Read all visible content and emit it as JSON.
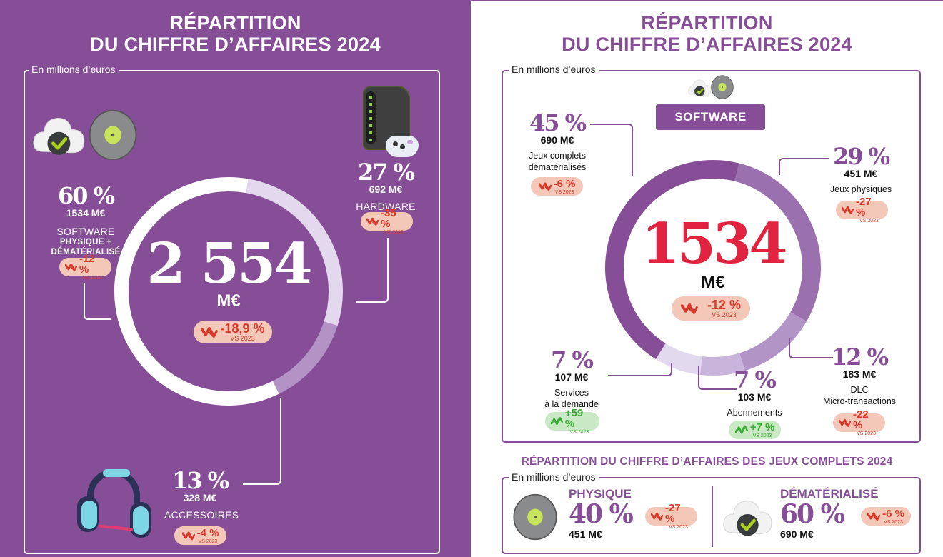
{
  "left": {
    "title_line1": "RÉPARTITION",
    "title_line2": "DU CHIFFRE D’AFFAIRES 2024",
    "unit_label": "En millions d’euros",
    "total": {
      "value": "2554",
      "value_display": "2 554",
      "unit": "M€",
      "change": "-18,9 %",
      "vs": "VS 2023",
      "trend": "down"
    },
    "segments": [
      {
        "key": "software",
        "pct": "60 %",
        "amount": "1534 M€",
        "label": "SOFTWARE",
        "sublabel1": "PHYSIQUE +",
        "sublabel2": "DÉMATÉRIALISÉ",
        "change": "-12 %",
        "vs": "VS 2023",
        "trend": "down",
        "icon": "cloud-disc-icon"
      },
      {
        "key": "hardware",
        "pct": "27 %",
        "amount": "692 M€",
        "label": "HARDWARE",
        "change": "-35 %",
        "vs": "VS 2023",
        "trend": "down",
        "icon": "console-controller-icon"
      },
      {
        "key": "accessoires",
        "pct": "13 %",
        "amount": "328 M€",
        "label": "ACCESSOIRES",
        "change": "-4 %",
        "vs": "VS 2023",
        "trend": "down",
        "icon": "headset-icon"
      }
    ]
  },
  "right": {
    "title_line1": "RÉPARTITION",
    "title_line2": "DU CHIFFRE D’AFFAIRES 2024",
    "unit_label": "En millions d’euros",
    "section_tag": "SOFTWARE",
    "total": {
      "value": "1534",
      "unit": "M€",
      "change": "-12 %",
      "vs": "VS 2023",
      "trend": "down"
    },
    "segments": [
      {
        "key": "jeux-dematerialises",
        "pct": "45 %",
        "amount": "690 M€",
        "label1": "Jeux complets",
        "label2": "dématérialisés",
        "change": "-6 %",
        "vs": "VS 2023",
        "trend": "down"
      },
      {
        "key": "jeux-physiques",
        "pct": "29 %",
        "amount": "451 M€",
        "label1": "Jeux physiques",
        "change": "-27 %",
        "vs": "VS 2023",
        "trend": "down"
      },
      {
        "key": "dlc",
        "pct": "12 %",
        "amount": "183 M€",
        "label1": "DLC",
        "label2": "Micro-transactions",
        "change": "-22 %",
        "vs": "VS 2023",
        "trend": "down"
      },
      {
        "key": "abonnements",
        "pct": "7 %",
        "amount": "103 M€",
        "label1": "Abonnements",
        "change": "+7 %",
        "vs": "VS 2023",
        "trend": "up"
      },
      {
        "key": "services",
        "pct": "7 %",
        "amount": "107 M€",
        "label1": "Services",
        "label2": "à la demande",
        "change": "+59 %",
        "vs": "VS 2023",
        "trend": "up"
      }
    ],
    "sub": {
      "title": "RÉPARTITION DU CHIFFRE D’AFFAIRES DES JEUX COMPLETS 2024",
      "unit_label": "En millions d’euros",
      "items": [
        {
          "key": "physique",
          "head": "PHYSIQUE",
          "pct": "40 %",
          "amount": "451 M€",
          "change": "-27 %",
          "vs": "VS 2023",
          "trend": "down"
        },
        {
          "key": "dematerialise",
          "head": "DÉMATÉRIALISÉ",
          "pct": "60 %",
          "amount": "690 M€",
          "change": "-6 %",
          "vs": "VS 2023",
          "trend": "down"
        }
      ]
    }
  },
  "colors": {
    "brand_purple": "#874e98",
    "down_red": "#d9392b",
    "down_bg": "#f3c8b8",
    "up_green": "#3aa935",
    "up_bg": "#c9e8c4",
    "total_red": "#e0243f"
  },
  "chart_data": [
    {
      "type": "pie",
      "title": "Répartition du chiffre d’affaires 2024 (en millions d’euros)",
      "center_label": "2554 M€",
      "categories": [
        "Hardware",
        "Accessoires",
        "Software (physique + dématérialisé)"
      ],
      "values": [
        692,
        328,
        1534
      ],
      "percentages": [
        27,
        13,
        60
      ],
      "change_vs_2023": [
        "-35 %",
        "-4 %",
        "-12 %"
      ],
      "colors": [
        "#e4d8ef",
        "#b393c6",
        "#ffffff"
      ],
      "total_change_vs_2023": "-18,9 %"
    },
    {
      "type": "pie",
      "title": "Répartition du chiffre d’affaires Software 2024 (en millions d’euros)",
      "center_label": "1534 M€",
      "categories": [
        "Jeux physiques",
        "DLC / Micro-transactions",
        "Abonnements",
        "Services à la demande",
        "Jeux complets dématérialisés"
      ],
      "values": [
        451,
        183,
        103,
        107,
        690
      ],
      "percentages": [
        29,
        12,
        7,
        7,
        45
      ],
      "change_vs_2023": [
        "-27 %",
        "-22 %",
        "+7 %",
        "+59 %",
        "-6 %"
      ],
      "colors": [
        "#9b70ae",
        "#b394c6",
        "#c9b5dc",
        "#e3d9ef",
        "#874e98"
      ],
      "total_change_vs_2023": "-12 %"
    },
    {
      "type": "table",
      "title": "Répartition du chiffre d’affaires des jeux complets 2024",
      "categories": [
        "Physique",
        "Dématérialisé"
      ],
      "values": [
        451,
        690
      ],
      "percentages": [
        40,
        60
      ],
      "change_vs_2023": [
        "-27 %",
        "-6 %"
      ]
    }
  ]
}
